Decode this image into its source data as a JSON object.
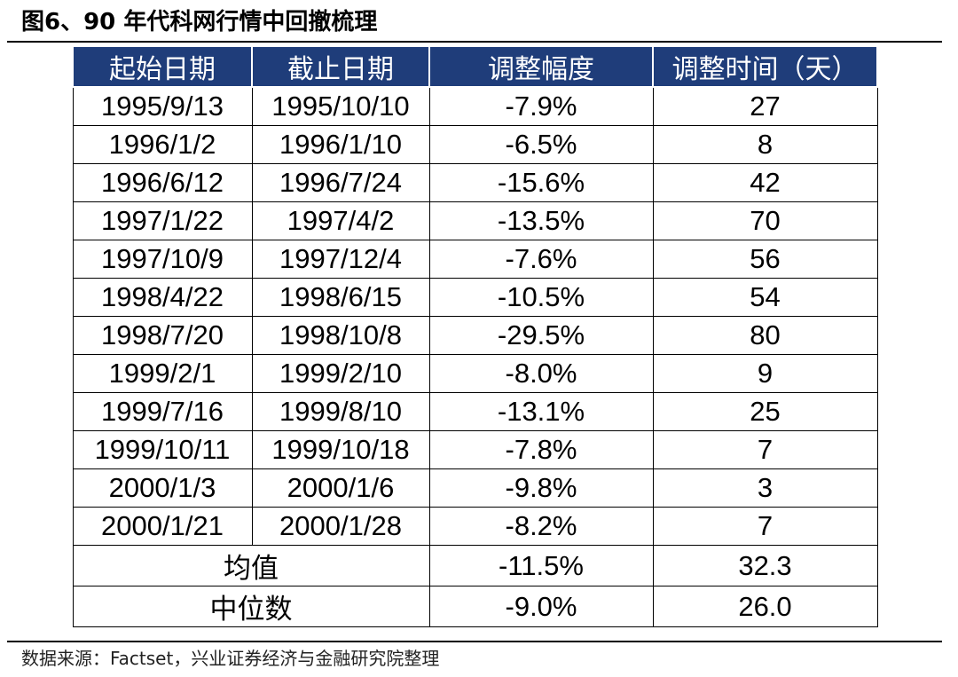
{
  "figure": {
    "title": "图6、90 年代科网行情中回撤梳理",
    "source": "数据来源：Factset，兴业证券经济与金融研究院整理"
  },
  "table": {
    "headers": [
      "起始日期",
      "截止日期",
      "调整幅度",
      "调整时间（天）"
    ],
    "rows": [
      {
        "start": "1995/9/13",
        "end": "1995/10/10",
        "drawdown": "-7.9%",
        "days": "27"
      },
      {
        "start": "1996/1/2",
        "end": "1996/1/10",
        "drawdown": "-6.5%",
        "days": "8"
      },
      {
        "start": "1996/6/12",
        "end": "1996/7/24",
        "drawdown": "-15.6%",
        "days": "42"
      },
      {
        "start": "1997/1/22",
        "end": "1997/4/2",
        "drawdown": "-13.5%",
        "days": "70"
      },
      {
        "start": "1997/10/9",
        "end": "1997/12/4",
        "drawdown": "-7.6%",
        "days": "56"
      },
      {
        "start": "1998/4/22",
        "end": "1998/6/15",
        "drawdown": "-10.5%",
        "days": "54"
      },
      {
        "start": "1998/7/20",
        "end": "1998/10/8",
        "drawdown": "-29.5%",
        "days": "80"
      },
      {
        "start": "1999/2/1",
        "end": "1999/2/10",
        "drawdown": "-8.0%",
        "days": "9"
      },
      {
        "start": "1999/7/16",
        "end": "1999/8/10",
        "drawdown": "-13.1%",
        "days": "25"
      },
      {
        "start": "1999/10/11",
        "end": "1999/10/18",
        "drawdown": "-7.8%",
        "days": "7"
      },
      {
        "start": "2000/1/3",
        "end": "2000/1/6",
        "drawdown": "-9.8%",
        "days": "3"
      },
      {
        "start": "2000/1/21",
        "end": "2000/1/28",
        "drawdown": "-8.2%",
        "days": "7"
      }
    ],
    "summary": [
      {
        "label": "均值",
        "drawdown": "-11.5%",
        "days": "32.3"
      },
      {
        "label": "中位数",
        "drawdown": "-9.0%",
        "days": "26.0"
      }
    ]
  }
}
